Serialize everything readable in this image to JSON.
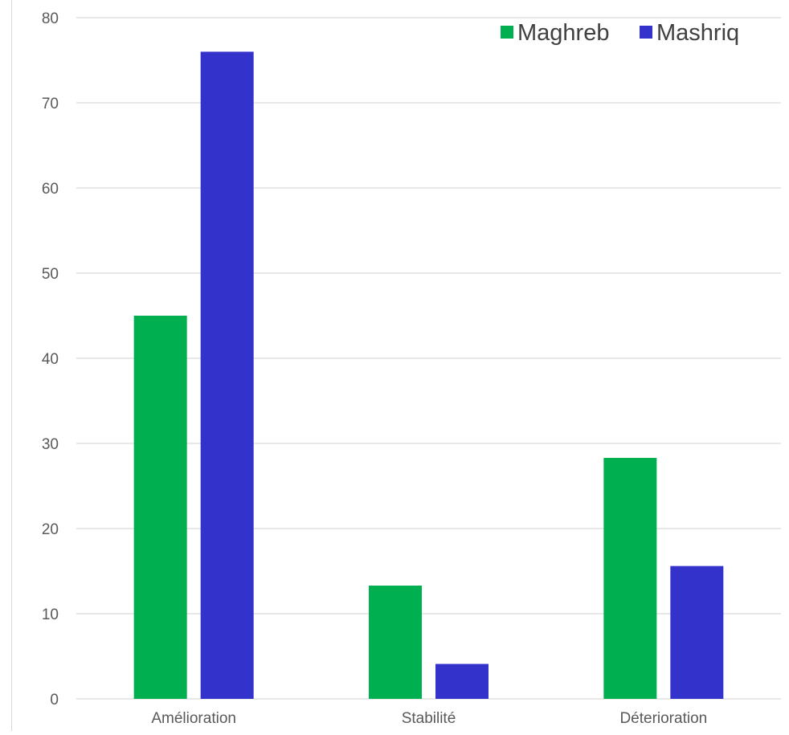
{
  "chart_data": {
    "type": "bar",
    "title": "",
    "xlabel": "",
    "ylabel": "",
    "categories": [
      "Amélioration",
      "Stabilité",
      "Déterioration"
    ],
    "series": [
      {
        "name": "Maghreb",
        "color": "#00b050",
        "values": [
          45,
          13.3,
          28.3
        ]
      },
      {
        "name": "Mashriq",
        "color": "#3333cc",
        "values": [
          76,
          4.1,
          15.6
        ]
      }
    ],
    "ylim": [
      0,
      80
    ],
    "yticks": [
      0,
      10,
      20,
      30,
      40,
      50,
      60,
      70,
      80
    ],
    "grid": true,
    "legend_position": "top-right",
    "gridline_color": "#d9d9d9",
    "text_color": "#595959"
  }
}
